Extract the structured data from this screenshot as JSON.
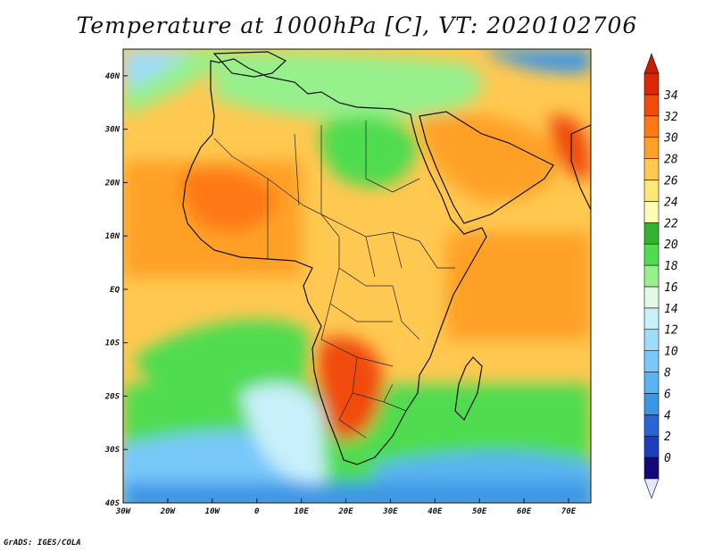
{
  "title": "Temperature at 1000hPa [C], VT: 2020102706",
  "credit": "GrADS: IGES/COLA",
  "map": {
    "lon_range": [
      -30,
      75
    ],
    "lat_range": [
      -40,
      45
    ],
    "lon_ticks": [
      {
        "value": -30,
        "label": "30W"
      },
      {
        "value": -20,
        "label": "20W"
      },
      {
        "value": -10,
        "label": "10W"
      },
      {
        "value": 0,
        "label": "0"
      },
      {
        "value": 10,
        "label": "10E"
      },
      {
        "value": 20,
        "label": "20E"
      },
      {
        "value": 30,
        "label": "30E"
      },
      {
        "value": 40,
        "label": "40E"
      },
      {
        "value": 50,
        "label": "50E"
      },
      {
        "value": 60,
        "label": "60E"
      },
      {
        "value": 70,
        "label": "70E"
      }
    ],
    "lat_ticks": [
      {
        "value": 40,
        "label": "40N"
      },
      {
        "value": 30,
        "label": "30N"
      },
      {
        "value": 20,
        "label": "20N"
      },
      {
        "value": 10,
        "label": "10N"
      },
      {
        "value": 0,
        "label": "EQ"
      },
      {
        "value": -10,
        "label": "10S"
      },
      {
        "value": -20,
        "label": "20S"
      },
      {
        "value": -30,
        "label": "30S"
      },
      {
        "value": -40,
        "label": "40S"
      }
    ]
  },
  "colorbar": {
    "levels": [
      0,
      2,
      4,
      6,
      8,
      10,
      12,
      14,
      16,
      18,
      20,
      22,
      24,
      26,
      28,
      30,
      32,
      34
    ],
    "labels": [
      "0",
      "2",
      "4",
      "6",
      "8",
      "10",
      "12",
      "14",
      "16",
      "18",
      "20",
      "22",
      "24",
      "26",
      "28",
      "30",
      "32",
      "34"
    ],
    "colors": [
      "#120a78",
      "#1e3cbe",
      "#2864d2",
      "#3c96e6",
      "#5ab4f0",
      "#78c8fa",
      "#a0dcfa",
      "#c8f0fa",
      "#e0fae6",
      "#96f08c",
      "#50dc50",
      "#32b432",
      "#fffab4",
      "#ffe678",
      "#ffc850",
      "#ffa028",
      "#ff7814",
      "#f04b0a",
      "#dc2800"
    ],
    "below_color": "#e6e6ff",
    "above_color": "#c81e00"
  }
}
